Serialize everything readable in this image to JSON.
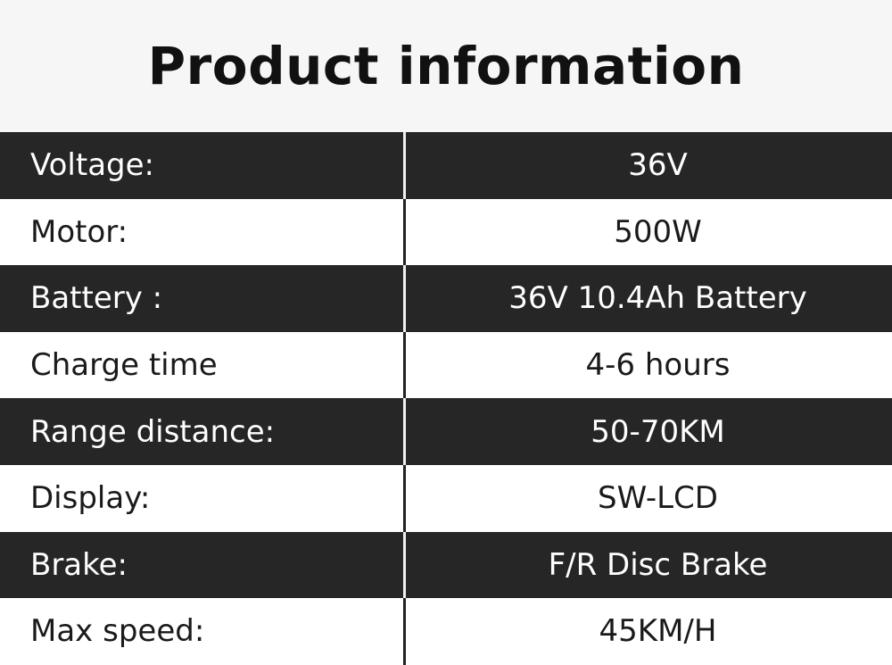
{
  "title": "Product information",
  "rows": [
    {
      "label": "Voltage:",
      "value": "36V"
    },
    {
      "label": "Motor:",
      "value": "500W"
    },
    {
      "label": "Battery :",
      "value": "36V 10.4Ah  Battery"
    },
    {
      "label": "Charge time",
      "value": "4-6 hours"
    },
    {
      "label": "Range distance:",
      "value": "50-70KM"
    },
    {
      "label": "Display:",
      "value": "SW-LCD"
    },
    {
      "label": "Brake:",
      "value": "F/R Disc Brake"
    },
    {
      "label": "Max speed:",
      "value": "45KM/H"
    }
  ],
  "colors": {
    "dark_row": "#262626",
    "light_row": "#ffffff",
    "title_bg": "#f6f6f6"
  }
}
